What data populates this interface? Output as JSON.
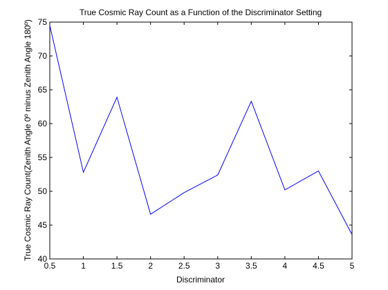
{
  "chart_data": {
    "type": "line",
    "title": "True Cosmic Ray Count as a Function of the Discriminator Setting",
    "xlabel": "Discriminator",
    "ylabel": "True Cosmic Ray Count(Zenith Angle 0º minus Zenith Angle 180º)",
    "xlim": [
      0.5,
      5
    ],
    "ylim": [
      40,
      75
    ],
    "x_ticks": [
      "0.5",
      "1",
      "1.5",
      "2",
      "2.5",
      "3",
      "3.5",
      "4",
      "4.5",
      "5"
    ],
    "y_ticks": [
      "40",
      "45",
      "50",
      "55",
      "60",
      "65",
      "70",
      "75"
    ],
    "grid": false,
    "series": [
      {
        "color": "#0000ff",
        "x": [
          0.5,
          1,
          1.5,
          2,
          2.5,
          3,
          3.5,
          4,
          4.5,
          5
        ],
        "y": [
          74.5,
          52.8,
          63.9,
          46.6,
          49.8,
          52.4,
          63.3,
          50.2,
          53.0,
          43.6
        ]
      }
    ]
  }
}
